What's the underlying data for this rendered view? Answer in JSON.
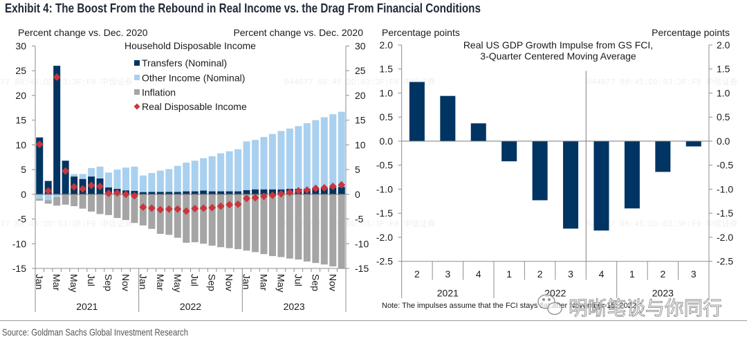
{
  "title": "Exhibit 4: The Boost From the Rebound in Real Income vs. the Drag From Financial Conditions",
  "source": "Source: Goldman Sachs Global Investment Research",
  "watermarks": {
    "overlay": "044077  80:45:DD:03:3F:F9  中信证券",
    "wechat": "明晰笔谈与你同行"
  },
  "chart_data": [
    {
      "type": "bar",
      "subtype": "stacked bar with diamond scatter overlay",
      "title": "Household Disposable Income",
      "ylabel_left": "Percent change vs. Dec. 2020",
      "ylabel_right": "Percent change vs. Dec. 2020",
      "xlabel": "",
      "ylim": [
        -15,
        30
      ],
      "yticks": [
        30,
        25,
        20,
        15,
        10,
        5,
        0,
        -5,
        -10,
        -15
      ],
      "ytick_labels": [
        "30",
        "25",
        "20",
        "15",
        "10",
        "5",
        "0",
        "-5",
        "-10",
        "-15"
      ],
      "grid": false,
      "legend_position": "top-center",
      "x": [
        "Jan 2021",
        "Feb 2021",
        "Mar 2021",
        "Apr 2021",
        "May 2021",
        "Jun 2021",
        "Jul 2021",
        "Aug 2021",
        "Sep 2021",
        "Oct 2021",
        "Nov 2021",
        "Dec 2021",
        "Jan 2022",
        "Feb 2022",
        "Mar 2022",
        "Apr 2022",
        "May 2022",
        "Jun 2022",
        "Jul 2022",
        "Aug 2022",
        "Sep 2022",
        "Oct 2022",
        "Nov 2022",
        "Dec 2022",
        "Jan 2023",
        "Feb 2023",
        "Mar 2023",
        "Apr 2023",
        "May 2023",
        "Jun 2023",
        "Jul 2023",
        "Aug 2023",
        "Sep 2023",
        "Oct 2023",
        "Nov 2023",
        "Dec 2023"
      ],
      "xtick_labels": [
        "Jan",
        "Mar",
        "May",
        "Jul",
        "Sep",
        "Nov",
        "Jan",
        "Mar",
        "May",
        "Jul",
        "Sep",
        "Nov",
        "Jan",
        "Mar",
        "May",
        "Jul",
        "Sep",
        "Nov"
      ],
      "year_labels": [
        "2021",
        "2022",
        "2023"
      ],
      "series": [
        {
          "name": "Transfers (Nominal)",
          "kind": "bar",
          "color": "#003462",
          "values": [
            11.5,
            2.7,
            26.0,
            6.8,
            3.6,
            3.1,
            3.6,
            3.2,
            1.4,
            1.1,
            0.8,
            0.7,
            0.45,
            0.5,
            0.5,
            0.5,
            0.5,
            0.6,
            0.6,
            0.75,
            0.6,
            0.6,
            0.6,
            0.6,
            0.85,
            1.0,
            1.0,
            1.0,
            1.0,
            1.1,
            1.1,
            1.1,
            1.2,
            1.3,
            1.4,
            1.5
          ]
        },
        {
          "name": "Other Income (Nominal)",
          "kind": "bar",
          "color": "#a9d0ef",
          "values": [
            -0.9,
            -1.2,
            -0.55,
            0.0,
            0.5,
            1.0,
            1.7,
            2.4,
            3.0,
            3.9,
            4.6,
            4.9,
            3.35,
            3.8,
            4.3,
            4.6,
            5.25,
            5.8,
            6.2,
            6.55,
            7.1,
            7.7,
            8.1,
            8.5,
            9.85,
            10.0,
            10.6,
            11.2,
            11.8,
            12.2,
            12.7,
            13.3,
            13.8,
            14.3,
            14.8,
            15.2
          ]
        },
        {
          "name": "Inflation",
          "kind": "bar",
          "color": "#a5a5a5",
          "values": [
            -0.4,
            -0.7,
            -1.75,
            -2.1,
            -2.4,
            -2.9,
            -3.5,
            -4.0,
            -4.2,
            -4.8,
            -5.2,
            -5.8,
            -6.3,
            -7.0,
            -8.0,
            -8.2,
            -8.8,
            -9.8,
            -9.7,
            -10.0,
            -10.4,
            -10.7,
            -10.9,
            -11.1,
            -11.4,
            -11.7,
            -12.1,
            -12.5,
            -12.7,
            -13.0,
            -13.2,
            -13.6,
            -13.9,
            -14.2,
            -14.6,
            -15.0
          ]
        },
        {
          "name": "Real Disposable Income",
          "kind": "scatter",
          "marker": "diamond",
          "color": "#c8363d",
          "values": [
            10.1,
            0.7,
            23.7,
            4.7,
            1.5,
            1.1,
            1.8,
            1.6,
            0.2,
            0.3,
            0.0,
            -0.3,
            -2.6,
            -2.8,
            -3.1,
            -3.0,
            -3.0,
            -3.4,
            -2.9,
            -2.8,
            -2.7,
            -2.4,
            -2.1,
            -2.0,
            -0.85,
            -0.7,
            -0.4,
            -0.2,
            0.1,
            0.4,
            0.7,
            0.85,
            1.2,
            1.3,
            1.6,
            1.9
          ]
        }
      ]
    },
    {
      "type": "bar",
      "title": [
        "Real US GDP Growth Impulse from GS FCI,",
        "3-Quarter Centered Moving Average"
      ],
      "ylabel_left": "Percentage points",
      "ylabel_right": "Percentage points",
      "xlabel": "",
      "ylim": [
        -2.5,
        2.0
      ],
      "yticks": [
        2.0,
        1.5,
        1.0,
        0.5,
        0.0,
        -0.5,
        -1.0,
        -1.5,
        -2.0,
        -2.5
      ],
      "ytick_labels": [
        "2.0",
        "1.5",
        "1.0",
        "0.5",
        "0.0",
        "-0.5",
        "-1.0",
        "-1.5",
        "-2.0",
        "-2.5"
      ],
      "grid": false,
      "categories": [
        "2",
        "3",
        "4",
        "1",
        "2",
        "3",
        "4",
        "1",
        "2",
        "3"
      ],
      "category_years": [
        {
          "label": "2021",
          "count": 3
        },
        {
          "label": "2022",
          "count": 4
        },
        {
          "label": "2023",
          "count": 3
        }
      ],
      "marker_line_after_category_index": 5,
      "series": [
        {
          "name": "Real US GDP Growth Impulse from GS FCI",
          "color": "#003462",
          "values": [
            1.23,
            0.94,
            0.37,
            -0.42,
            -1.23,
            -1.82,
            -1.86,
            -1.4,
            -0.64,
            -0.11
          ]
        }
      ],
      "note": "Note: The impulses assume that the FCI stays flat after November 15, 2022"
    }
  ]
}
